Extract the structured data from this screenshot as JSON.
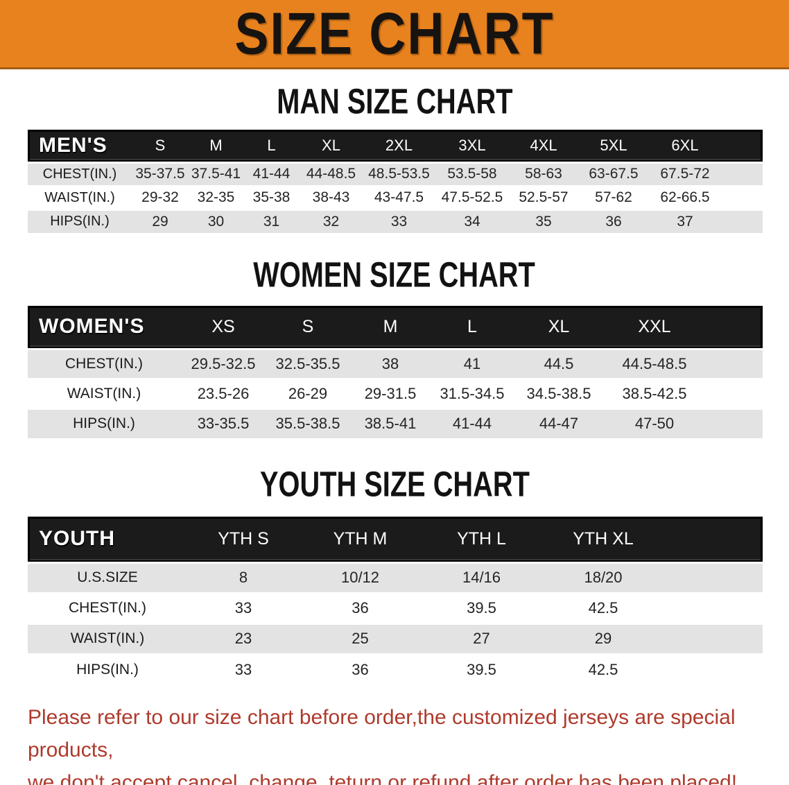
{
  "banner": {
    "title": "SIZE CHART",
    "bg_color": "#E8821E"
  },
  "sections": {
    "men": {
      "heading": "MAN SIZE CHART",
      "table": {
        "label": "MEN'S",
        "columns": [
          "S",
          "M",
          "L",
          "XL",
          "2XL",
          "3XL",
          "4XL",
          "5XL",
          "6XL"
        ],
        "rows": [
          {
            "label": "CHEST(IN.)",
            "values": [
              "35-37.5",
              "37.5-41",
              "41-44",
              "44-48.5",
              "48.5-53.5",
              "53.5-58",
              "58-63",
              "63-67.5",
              "67.5-72"
            ]
          },
          {
            "label": "WAIST(IN.)",
            "values": [
              "29-32",
              "32-35",
              "35-38",
              "38-43",
              "43-47.5",
              "47.5-52.5",
              "52.5-57",
              "57-62",
              "62-66.5"
            ]
          },
          {
            "label": "HIPS(IN.)",
            "values": [
              "29",
              "30",
              "31",
              "32",
              "33",
              "34",
              "35",
              "36",
              "37"
            ]
          }
        ]
      }
    },
    "women": {
      "heading": "WOMEN SIZE CHART",
      "table": {
        "label": "WOMEN'S",
        "columns": [
          "XS",
          "S",
          "M",
          "L",
          "XL",
          "XXL"
        ],
        "rows": [
          {
            "label": "CHEST(IN.)",
            "values": [
              "29.5-32.5",
              "32.5-35.5",
              "38",
              "41",
              "44.5",
              "44.5-48.5"
            ]
          },
          {
            "label": "WAIST(IN.)",
            "values": [
              "23.5-26",
              "26-29",
              "29-31.5",
              "31.5-34.5",
              "34.5-38.5",
              "38.5-42.5"
            ]
          },
          {
            "label": "HIPS(IN.)",
            "values": [
              "33-35.5",
              "35.5-38.5",
              "38.5-41",
              "41-44",
              "44-47",
              "47-50"
            ]
          }
        ]
      }
    },
    "youth": {
      "heading": "YOUTH SIZE CHART",
      "table": {
        "label": "YOUTH",
        "columns": [
          "YTH S",
          "YTH M",
          "YTH L",
          "YTH XL"
        ],
        "rows": [
          {
            "label": "U.S.SIZE",
            "values": [
              "8",
              "10/12",
              "14/16",
              "18/20"
            ]
          },
          {
            "label": "CHEST(IN.)",
            "values": [
              "33",
              "36",
              "39.5",
              "42.5"
            ]
          },
          {
            "label": "WAIST(IN.)",
            "values": [
              "23",
              "25",
              "27",
              "29"
            ]
          },
          {
            "label": "HIPS(IN.)",
            "values": [
              "33",
              "36",
              "39.5",
              "42.5"
            ]
          }
        ]
      }
    }
  },
  "footer": {
    "line1": "Please refer to our size chart before order,the customized jerseys are special products,",
    "line2": "we don't accept cancel, change, teturn or refund after order has been placed!",
    "text_color": "#AE3A2C"
  }
}
